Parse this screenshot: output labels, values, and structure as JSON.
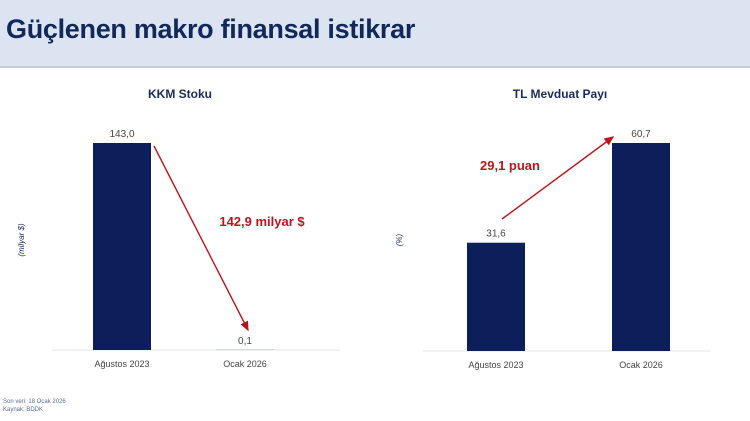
{
  "header": {
    "title": "Güçlenen makro finansal istikrar"
  },
  "colors": {
    "bar": "#0c1f5b",
    "annotation": "#b5171e",
    "header_bg": "#dde4f1",
    "title": "#10285a"
  },
  "chart_data": [
    {
      "type": "bar",
      "title": "KKM Stoku",
      "ylabel": "(milyar $)",
      "categories": [
        "Ağustos 2023",
        "Ocak 2026"
      ],
      "values": [
        143.0,
        0.1
      ],
      "value_labels": [
        "143,0",
        "0,1"
      ],
      "ylim": [
        0,
        143
      ],
      "grid": false,
      "annotation": {
        "text": "142,9 milyar $",
        "arrow": "down",
        "from": "Ağustos 2023",
        "to": "Ocak 2026"
      }
    },
    {
      "type": "bar",
      "title": "TL Mevduat Payı",
      "ylabel": "(%)",
      "categories": [
        "Ağustos 2023",
        "Ocak 2026"
      ],
      "values": [
        31.6,
        60.7
      ],
      "value_labels": [
        "31,6",
        "60,7"
      ],
      "ylim": [
        0,
        60.7
      ],
      "grid": false,
      "annotation": {
        "text": "29,1 puan",
        "arrow": "up",
        "from": "Ağustos 2023",
        "to": "Ocak 2026"
      }
    }
  ],
  "footer": {
    "source_date": "Son veri: 18 Ocak 2026",
    "source": "Kaynak: BDDK"
  }
}
